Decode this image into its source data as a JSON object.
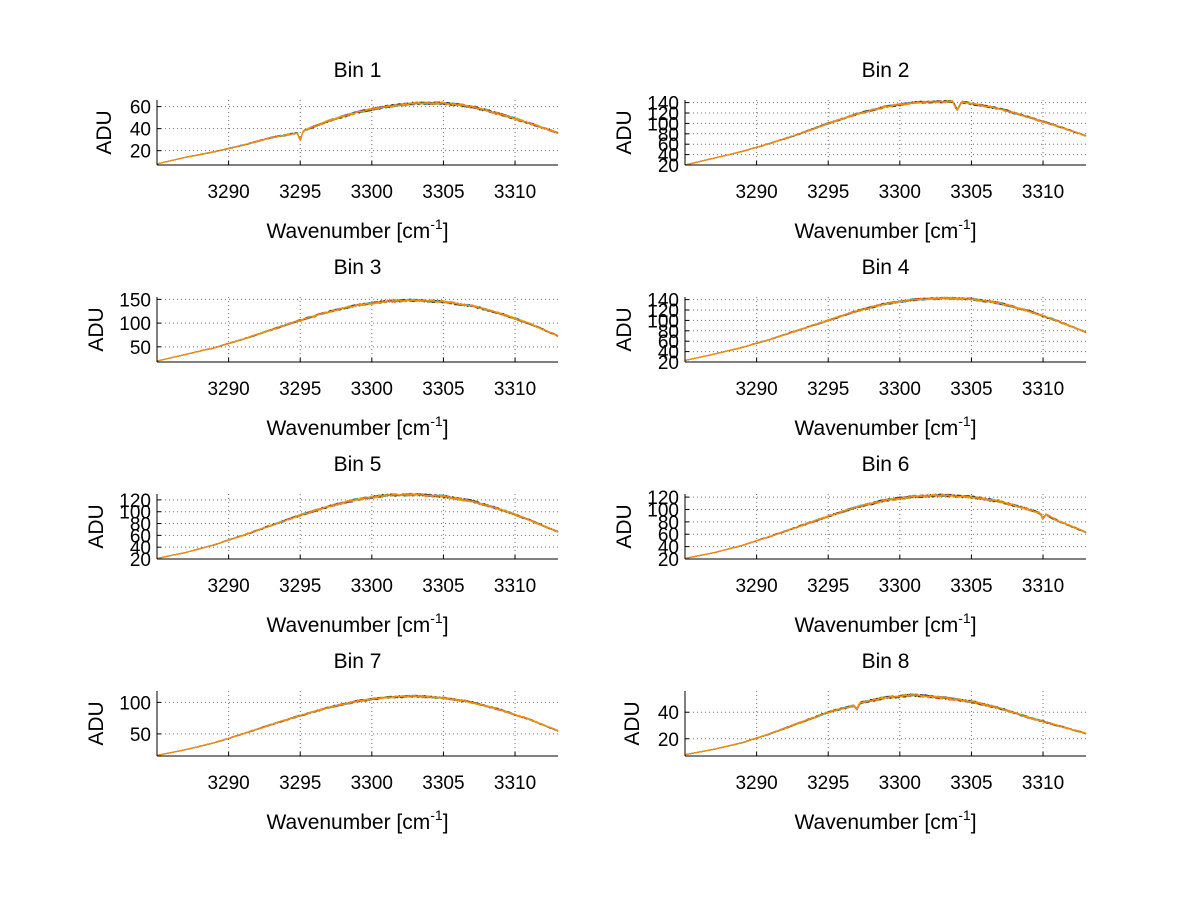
{
  "figure": {
    "background": "#ffffff"
  },
  "series_colors": [
    "#1f3fa0",
    "#2aa02a",
    "#d62728",
    "#17becf",
    "#9b59b6",
    "#c8c800",
    "#333333",
    "#ff8c00"
  ],
  "chart_data": [
    {
      "type": "line",
      "title": "Bin 1",
      "xlabel": "Wavenumber [cm",
      "xlabel_sup": "-1",
      "xlabel_end": "]",
      "ylabel": "ADU",
      "xlim": [
        3285,
        3313
      ],
      "ylim": [
        7,
        66
      ],
      "xticks": [
        3290,
        3295,
        3300,
        3305,
        3310
      ],
      "yticks": [
        20,
        40,
        60
      ],
      "grid": true,
      "x": [
        3285,
        3287,
        3289,
        3291,
        3293,
        3294.8,
        3295,
        3295.2,
        3297,
        3299,
        3301,
        3303,
        3305,
        3307,
        3309,
        3311,
        3313
      ],
      "y": [
        8,
        14,
        19,
        25,
        32,
        36,
        29,
        38,
        47,
        55,
        60,
        63,
        63,
        60,
        53,
        45,
        36
      ],
      "series_count": 8,
      "noise": 1.5
    },
    {
      "type": "line",
      "title": "Bin 2",
      "xlabel": "Wavenumber [cm",
      "xlabel_sup": "-1",
      "xlabel_end": "]",
      "ylabel": "ADU",
      "xlim": [
        3285,
        3313
      ],
      "ylim": [
        20,
        145
      ],
      "xticks": [
        3290,
        3295,
        3300,
        3305,
        3310
      ],
      "yticks": [
        20,
        40,
        60,
        80,
        100,
        120,
        140
      ],
      "grid": true,
      "x": [
        3285,
        3287,
        3289,
        3291,
        3293,
        3295,
        3297,
        3299,
        3301,
        3303,
        3303.7,
        3304,
        3304.3,
        3305,
        3307,
        3309,
        3311,
        3313
      ],
      "y": [
        20,
        33,
        46,
        62,
        80,
        100,
        118,
        132,
        140,
        142,
        142,
        125,
        141,
        138,
        128,
        112,
        95,
        76
      ],
      "series_count": 8,
      "noise": 2.5
    },
    {
      "type": "line",
      "title": "Bin 3",
      "xlabel": "Wavenumber [cm",
      "xlabel_sup": "-1",
      "xlabel_end": "]",
      "ylabel": "ADU",
      "xlim": [
        3285,
        3313
      ],
      "ylim": [
        18,
        155
      ],
      "xticks": [
        3290,
        3295,
        3300,
        3305,
        3310
      ],
      "yticks": [
        50,
        100,
        150
      ],
      "grid": true,
      "x": [
        3285,
        3287,
        3289,
        3291,
        3293,
        3295,
        3297,
        3299,
        3301,
        3303,
        3305,
        3307,
        3309,
        3311,
        3313
      ],
      "y": [
        20,
        34,
        48,
        66,
        86,
        106,
        124,
        138,
        146,
        148,
        145,
        136,
        120,
        99,
        73
      ],
      "series_count": 8,
      "noise": 3
    },
    {
      "type": "line",
      "title": "Bin 4",
      "xlabel": "Wavenumber [cm",
      "xlabel_sup": "-1",
      "xlabel_end": "]",
      "ylabel": "ADU",
      "xlim": [
        3285,
        3313
      ],
      "ylim": [
        20,
        145
      ],
      "xticks": [
        3290,
        3295,
        3300,
        3305,
        3310
      ],
      "yticks": [
        20,
        40,
        60,
        80,
        100,
        120,
        140
      ],
      "grid": true,
      "x": [
        3285,
        3287,
        3289,
        3291,
        3293,
        3295,
        3297,
        3299,
        3301,
        3303,
        3305,
        3307,
        3309,
        3311,
        3313
      ],
      "y": [
        23,
        35,
        48,
        64,
        82,
        100,
        118,
        132,
        140,
        143,
        141,
        133,
        118,
        99,
        77
      ],
      "series_count": 8,
      "noise": 2.5
    },
    {
      "type": "line",
      "title": "Bin 5",
      "xlabel": "Wavenumber [cm",
      "xlabel_sup": "-1",
      "xlabel_end": "]",
      "ylabel": "ADU",
      "xlim": [
        3285,
        3313
      ],
      "ylim": [
        20,
        130
      ],
      "xticks": [
        3290,
        3295,
        3300,
        3305,
        3310
      ],
      "yticks": [
        20,
        40,
        60,
        80,
        100,
        120
      ],
      "grid": true,
      "x": [
        3285,
        3287,
        3289,
        3291,
        3293,
        3295,
        3297,
        3299,
        3301,
        3303,
        3305,
        3307,
        3309,
        3311,
        3313
      ],
      "y": [
        21,
        31,
        44,
        60,
        77,
        94,
        109,
        121,
        128,
        129,
        126,
        118,
        104,
        86,
        66
      ],
      "series_count": 8,
      "noise": 2.5
    },
    {
      "type": "line",
      "title": "Bin 6",
      "xlabel": "Wavenumber [cm",
      "xlabel_sup": "-1",
      "xlabel_end": "]",
      "ylabel": "ADU",
      "xlim": [
        3285,
        3313
      ],
      "ylim": [
        20,
        125
      ],
      "xticks": [
        3290,
        3295,
        3300,
        3305,
        3310
      ],
      "yticks": [
        20,
        40,
        60,
        80,
        100,
        120
      ],
      "grid": true,
      "x": [
        3285,
        3287,
        3289,
        3291,
        3293,
        3295,
        3297,
        3299,
        3301,
        3303,
        3305,
        3307,
        3309,
        3309.8,
        3310,
        3310.2,
        3311,
        3313
      ],
      "y": [
        21,
        30,
        42,
        57,
        73,
        89,
        104,
        115,
        121,
        123,
        120,
        113,
        100,
        94,
        84,
        92,
        82,
        63
      ],
      "series_count": 8,
      "noise": 2.5
    },
    {
      "type": "line",
      "title": "Bin 7",
      "xlabel": "Wavenumber [cm",
      "xlabel_sup": "-1",
      "xlabel_end": "]",
      "ylabel": "ADU",
      "xlim": [
        3285,
        3313
      ],
      "ylim": [
        15,
        118
      ],
      "xticks": [
        3290,
        3295,
        3300,
        3305,
        3310
      ],
      "yticks": [
        50,
        100
      ],
      "grid": true,
      "x": [
        3285,
        3287,
        3289,
        3291,
        3293,
        3295,
        3297,
        3299,
        3301,
        3303,
        3305,
        3307,
        3309,
        3311,
        3313
      ],
      "y": [
        16,
        25,
        36,
        50,
        65,
        79,
        92,
        102,
        108,
        110,
        107,
        100,
        88,
        73,
        55
      ],
      "series_count": 8,
      "noise": 2
    },
    {
      "type": "line",
      "title": "Bin 8",
      "xlabel": "Wavenumber [cm",
      "xlabel_sup": "-1",
      "xlabel_end": "]",
      "ylabel": "ADU",
      "xlim": [
        3285,
        3313
      ],
      "ylim": [
        7,
        56
      ],
      "xticks": [
        3290,
        3295,
        3300,
        3305,
        3310
      ],
      "yticks": [
        20,
        40
      ],
      "grid": true,
      "x": [
        3285,
        3287,
        3289,
        3291,
        3293,
        3295,
        3296.8,
        3297,
        3297.2,
        3299,
        3301,
        3303,
        3305,
        3307,
        3309,
        3311,
        3313
      ],
      "y": [
        8,
        12,
        17,
        24,
        32,
        40,
        45,
        42,
        47,
        51,
        53,
        51,
        48,
        43,
        36,
        30,
        24
      ],
      "series_count": 8,
      "noise": 1.2
    }
  ]
}
